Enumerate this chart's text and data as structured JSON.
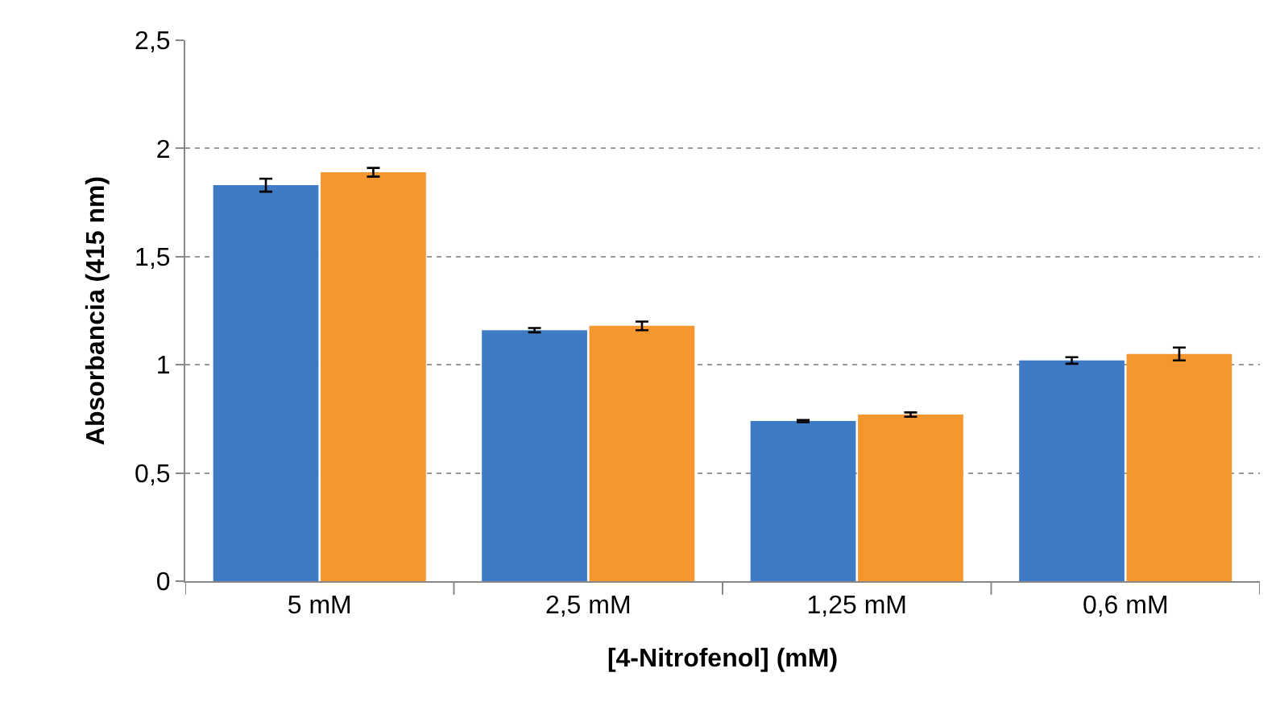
{
  "chart_data": {
    "type": "bar",
    "xlabel": "[4-Nitrofenol] (mM)",
    "ylabel": "Absorbancia (415 nm)",
    "categories": [
      "5 mM",
      "2,5 mM",
      "1,25 mM",
      "0,6 mM"
    ],
    "series": [
      {
        "color": "#3f7bc4",
        "values": [
          1.83,
          1.16,
          0.74,
          1.02
        ],
        "errors": [
          0.03,
          0.01,
          0.005,
          0.015
        ]
      },
      {
        "color": "#f5962f",
        "values": [
          1.89,
          1.18,
          0.77,
          1.05
        ],
        "errors": [
          0.02,
          0.02,
          0.01,
          0.03
        ]
      }
    ],
    "ylim": [
      0,
      2.5
    ],
    "yticks": [
      0,
      {
        "value": 0.5,
        "label": "0,5"
      },
      1,
      {
        "value": 1.5,
        "label": "1,5"
      },
      2,
      {
        "value": 2.5,
        "label": "2,5"
      }
    ],
    "grid": "y"
  }
}
